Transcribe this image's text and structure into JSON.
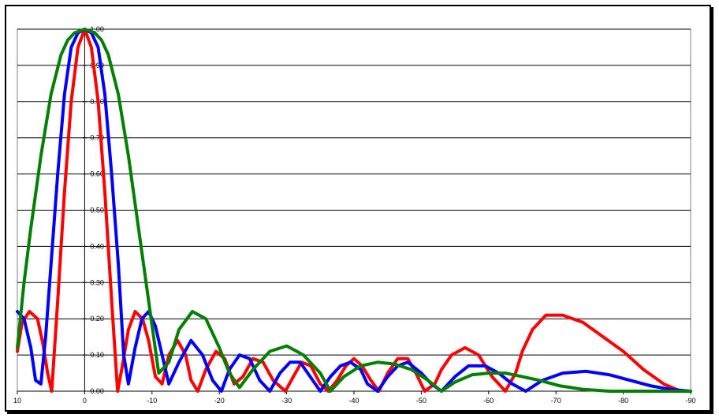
{
  "chart_data": {
    "type": "line",
    "title": "",
    "xlabel": "",
    "ylabel": "",
    "xlim": [
      10,
      -90
    ],
    "ylim": [
      0,
      1
    ],
    "grid": "horizontal",
    "x_ticks": [
      "10",
      "0",
      "-10",
      "-20",
      "-30",
      "-40",
      "-50",
      "-60",
      "-70",
      "-80",
      "-90"
    ],
    "y_ticks": [
      "0.00",
      "0.10",
      "0.20",
      "0.30",
      "0.40",
      "0.50",
      "0.60",
      "0.70",
      "0.80",
      "0.90",
      "1.00"
    ],
    "series": [
      {
        "color": "#ff0000",
        "x": [
          10,
          9.3,
          8.2,
          7,
          6.2,
          5.5,
          4.9,
          4,
          3,
          2,
          1,
          0,
          -1,
          -2,
          -3,
          -4,
          -4.9,
          -5.5,
          -6.5,
          -7.5,
          -8.6,
          -9.5,
          -10.5,
          -11.5,
          -12.5,
          -13.8,
          -15,
          -15.8,
          -16.8,
          -18,
          -19.5,
          -20.8,
          -22.2,
          -23.5,
          -25,
          -26.5,
          -28,
          -29.8,
          -31,
          -32.2,
          -33.6,
          -35,
          -36.2,
          -37.5,
          -38.8,
          -40,
          -41.2,
          -42.5,
          -43.7,
          -45,
          -46.5,
          -48,
          -49.2,
          -50.5,
          -52,
          -53,
          -54.5,
          -56.5,
          -58.5,
          -60.5,
          -62.5,
          -64,
          -65,
          -66.5,
          -68.5,
          -71,
          -74,
          -77,
          -80,
          -83,
          -86,
          -88.5,
          -90
        ],
        "y": [
          0.11,
          0.19,
          0.22,
          0.2,
          0.13,
          0.05,
          0.0,
          0.25,
          0.55,
          0.8,
          0.95,
          1.0,
          0.95,
          0.8,
          0.55,
          0.25,
          0.0,
          0.06,
          0.17,
          0.22,
          0.2,
          0.14,
          0.04,
          0.02,
          0.1,
          0.14,
          0.1,
          0.03,
          0.0,
          0.06,
          0.11,
          0.09,
          0.02,
          0.04,
          0.09,
          0.08,
          0.03,
          0.0,
          0.04,
          0.08,
          0.07,
          0.02,
          0.0,
          0.03,
          0.07,
          0.09,
          0.07,
          0.03,
          0.0,
          0.05,
          0.09,
          0.09,
          0.05,
          0.0,
          0.02,
          0.06,
          0.1,
          0.12,
          0.1,
          0.04,
          0.0,
          0.05,
          0.11,
          0.17,
          0.21,
          0.21,
          0.19,
          0.15,
          0.11,
          0.06,
          0.02,
          0.0,
          0.0
        ]
      },
      {
        "color": "#0000ff",
        "x": [
          10,
          9,
          8,
          7.3,
          6.5,
          5.8,
          5,
          4,
          3,
          2,
          1,
          0,
          -1,
          -2,
          -3,
          -4,
          -5,
          -5.8,
          -6.5,
          -7.5,
          -8.5,
          -9.5,
          -10.5,
          -11.5,
          -12.5,
          -14,
          -15.8,
          -17.5,
          -19,
          -20.3,
          -21.5,
          -23,
          -24.5,
          -26,
          -27.5,
          -29,
          -30.5,
          -32,
          -33.5,
          -35,
          -36.5,
          -38,
          -39.5,
          -41,
          -42,
          -43.5,
          -45,
          -46.5,
          -48,
          -50,
          -51.5,
          -53,
          -55,
          -57,
          -59.5,
          -61.5,
          -63.5,
          -65.5,
          -68,
          -71,
          -74.5,
          -78,
          -81,
          -84,
          -87,
          -90
        ],
        "y": [
          0.22,
          0.2,
          0.12,
          0.03,
          0.02,
          0.15,
          0.35,
          0.6,
          0.82,
          0.95,
          0.99,
          1.0,
          0.99,
          0.95,
          0.82,
          0.6,
          0.35,
          0.1,
          0.02,
          0.12,
          0.2,
          0.22,
          0.18,
          0.1,
          0.02,
          0.08,
          0.14,
          0.1,
          0.03,
          0.0,
          0.06,
          0.1,
          0.09,
          0.03,
          0.0,
          0.05,
          0.08,
          0.08,
          0.04,
          0.0,
          0.04,
          0.07,
          0.08,
          0.06,
          0.02,
          0.0,
          0.04,
          0.07,
          0.08,
          0.05,
          0.02,
          0.0,
          0.04,
          0.07,
          0.07,
          0.05,
          0.02,
          0.0,
          0.03,
          0.05,
          0.055,
          0.045,
          0.03,
          0.015,
          0.005,
          0.0
        ]
      },
      {
        "color": "#008000",
        "x": [
          10,
          9,
          8,
          6.5,
          5,
          3.5,
          2.5,
          1.5,
          0,
          -1.5,
          -2.5,
          -3.5,
          -5,
          -6.5,
          -8,
          -9.5,
          -11,
          -12.5,
          -14,
          -16,
          -18,
          -20,
          -21.5,
          -23,
          -25,
          -27.5,
          -30,
          -32.5,
          -35,
          -36.5,
          -38.5,
          -41,
          -43.5,
          -46,
          -48.5,
          -51,
          -53,
          -55,
          -57.5,
          -60,
          -62.5,
          -65,
          -67.5,
          -70.5,
          -74,
          -78,
          -82,
          -86,
          -90
        ],
        "y": [
          0.12,
          0.3,
          0.45,
          0.65,
          0.82,
          0.93,
          0.97,
          0.99,
          1.0,
          0.99,
          0.97,
          0.93,
          0.82,
          0.65,
          0.45,
          0.25,
          0.05,
          0.08,
          0.17,
          0.22,
          0.2,
          0.12,
          0.05,
          0.01,
          0.06,
          0.11,
          0.125,
          0.1,
          0.05,
          0.0,
          0.04,
          0.07,
          0.08,
          0.075,
          0.06,
          0.03,
          0.0,
          0.025,
          0.045,
          0.05,
          0.05,
          0.04,
          0.03,
          0.015,
          0.005,
          0.0,
          0.0,
          0.0,
          0.0
        ]
      }
    ]
  }
}
